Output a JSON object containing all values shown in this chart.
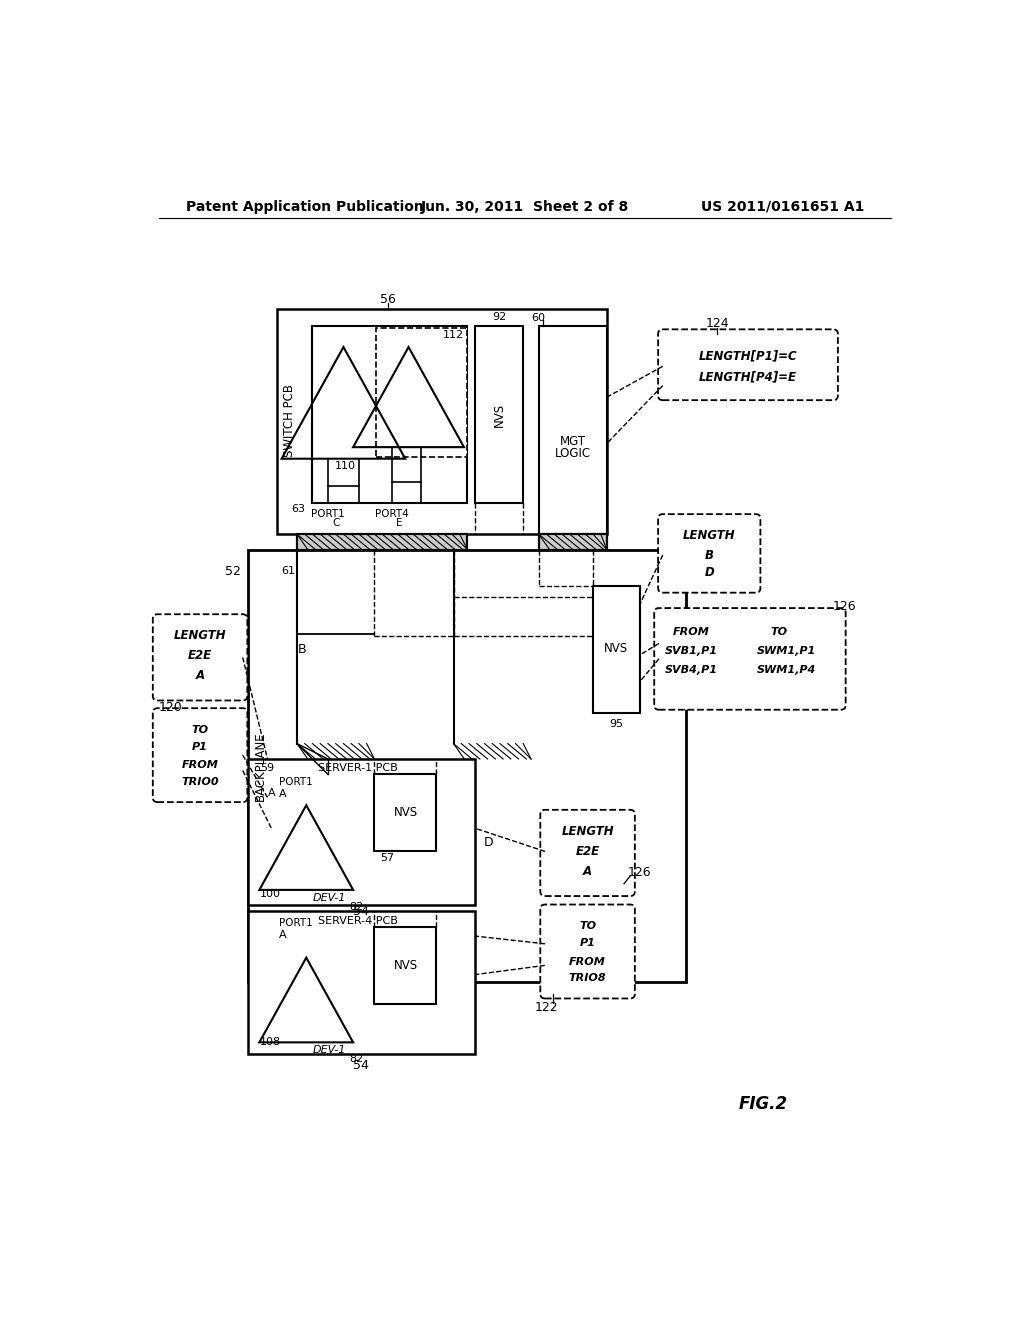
{
  "bg_color": "#ffffff",
  "title_left": "Patent Application Publication",
  "title_center": "Jun. 30, 2011  Sheet 2 of 8",
  "title_right": "US 2011/0161651 A1",
  "fig_label": "FIG.2"
}
